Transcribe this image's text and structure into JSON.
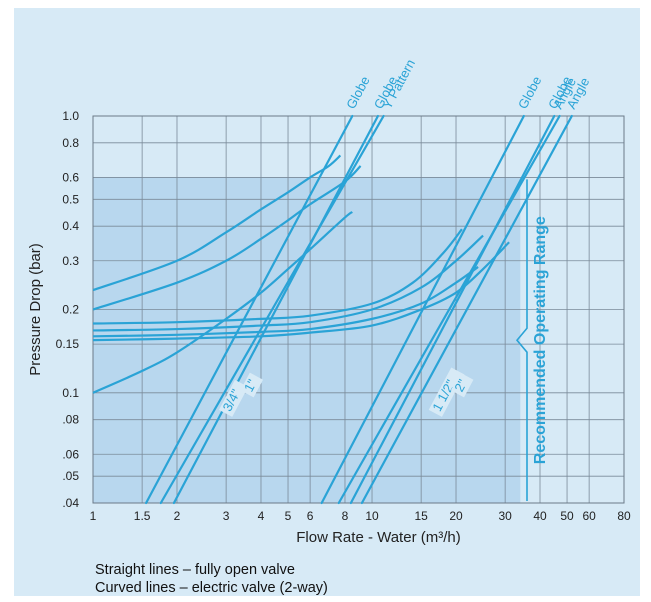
{
  "chart_data": {
    "type": "line",
    "xlabel": "Flow Rate - Water (m³/h)",
    "ylabel": "Pressure Drop (bar)",
    "x_scale": "log",
    "y_scale": "log",
    "xlim": [
      1,
      80
    ],
    "ylim": [
      0.04,
      1.0
    ],
    "x_ticks": [
      1,
      1.5,
      2,
      3,
      4,
      5,
      6,
      8,
      10,
      15,
      20,
      30,
      40,
      50,
      60,
      80
    ],
    "x_tick_labels": [
      "1",
      "1.5",
      "2",
      "3",
      "4",
      "5",
      "6",
      "8",
      "10",
      "15",
      "20",
      "30",
      "40",
      "50",
      "60",
      "80"
    ],
    "y_ticks": [
      0.04,
      0.05,
      0.06,
      0.08,
      0.1,
      0.15,
      0.2,
      0.3,
      0.4,
      0.5,
      0.6,
      0.8,
      1.0
    ],
    "y_tick_labels": [
      ".04",
      ".05",
      ".06",
      ".08",
      "0.1",
      "0.15",
      "0.2",
      "0.3",
      "0.4",
      "0.5",
      "0.6",
      "0.8",
      "1.0"
    ],
    "grid": true,
    "shaded_region": {
      "label": "Recommended Operating Range",
      "x": [
        1,
        34
      ],
      "y": [
        0.04,
        0.6
      ]
    },
    "series": [
      {
        "name": "3/4\" Globe",
        "kind": "straight",
        "x": [
          1.55,
          8.5
        ],
        "y": [
          0.04,
          1.0
        ]
      },
      {
        "name": "3/4\" Y Pattern",
        "kind": "straight",
        "x": [
          1.75,
          11.0
        ],
        "y": [
          0.04,
          1.0
        ]
      },
      {
        "name": "1\" Globe",
        "kind": "straight",
        "x": [
          1.95,
          10.5
        ],
        "y": [
          0.04,
          1.0
        ]
      },
      {
        "name": "1 1/2\" Globe",
        "kind": "straight",
        "x": [
          6.6,
          35.0
        ],
        "y": [
          0.04,
          1.0
        ]
      },
      {
        "name": "1 1/2\" Angle",
        "kind": "straight",
        "x": [
          7.6,
          47.0
        ],
        "y": [
          0.04,
          1.0
        ]
      },
      {
        "name": "2\" Globe",
        "kind": "straight",
        "x": [
          8.4,
          45.0
        ],
        "y": [
          0.04,
          1.0
        ]
      },
      {
        "name": "2\" Angle",
        "kind": "straight",
        "x": [
          9.2,
          52.0
        ],
        "y": [
          0.04,
          1.0
        ]
      }
    ],
    "curves": [
      {
        "kind": "curved",
        "x": [
          1,
          2,
          3,
          4,
          5,
          6,
          7,
          7.7
        ],
        "y": [
          0.235,
          0.3,
          0.38,
          0.46,
          0.53,
          0.6,
          0.66,
          0.72
        ]
      },
      {
        "kind": "curved",
        "x": [
          1,
          2,
          3,
          4,
          5,
          6,
          8,
          9.1
        ],
        "y": [
          0.2,
          0.25,
          0.3,
          0.36,
          0.42,
          0.48,
          0.58,
          0.66
        ]
      },
      {
        "kind": "curved",
        "x": [
          1,
          1.5,
          2,
          3,
          4,
          5,
          6,
          8,
          8.5
        ],
        "y": [
          0.1,
          0.12,
          0.14,
          0.185,
          0.23,
          0.28,
          0.33,
          0.43,
          0.45
        ]
      },
      {
        "kind": "curved",
        "x": [
          1,
          2,
          4,
          6,
          10,
          14,
          18,
          21
        ],
        "y": [
          0.178,
          0.18,
          0.185,
          0.19,
          0.21,
          0.25,
          0.32,
          0.39
        ]
      },
      {
        "kind": "curved",
        "x": [
          1,
          2,
          4,
          6,
          10,
          15,
          20,
          25
        ],
        "y": [
          0.168,
          0.17,
          0.175,
          0.18,
          0.2,
          0.24,
          0.3,
          0.37
        ]
      },
      {
        "kind": "curved",
        "x": [
          1,
          2,
          4,
          6,
          10,
          15,
          20,
          24
        ],
        "y": [
          0.16,
          0.162,
          0.166,
          0.17,
          0.185,
          0.21,
          0.25,
          0.285
        ]
      },
      {
        "kind": "curved",
        "x": [
          1,
          2,
          4,
          6,
          10,
          15,
          20,
          25,
          31
        ],
        "y": [
          0.155,
          0.157,
          0.16,
          0.165,
          0.175,
          0.2,
          0.23,
          0.28,
          0.35
        ]
      }
    ],
    "curve_labels": [
      {
        "text": "Globe",
        "x": 8.6
      },
      {
        "text": "Globe",
        "x": 10.8
      },
      {
        "text": "Y Pattern",
        "x": 11.6
      },
      {
        "text": "Globe",
        "x": 35.5
      },
      {
        "text": "Globe",
        "x": 45.5
      },
      {
        "text": "Angle",
        "x": 47.5
      },
      {
        "text": "Angle",
        "x": 53.0
      }
    ],
    "size_labels": [
      {
        "text": "3/4\"",
        "x": 3.1,
        "y": 0.085
      },
      {
        "text": "1\"",
        "x": 3.7,
        "y": 0.1
      },
      {
        "text": "1 1/2\"",
        "x": 17.5,
        "y": 0.085
      },
      {
        "text": "2\"",
        "x": 21.0,
        "y": 0.1
      }
    ],
    "colors": {
      "line": "#2aa3d6",
      "panel": "#d7eaf6",
      "shade": "#b8d7ee",
      "grid": "#7a8a99"
    }
  },
  "notes": {
    "straight": "Straight lines – fully open valve",
    "curved": "Curved lines – electric valve (2-way)"
  }
}
